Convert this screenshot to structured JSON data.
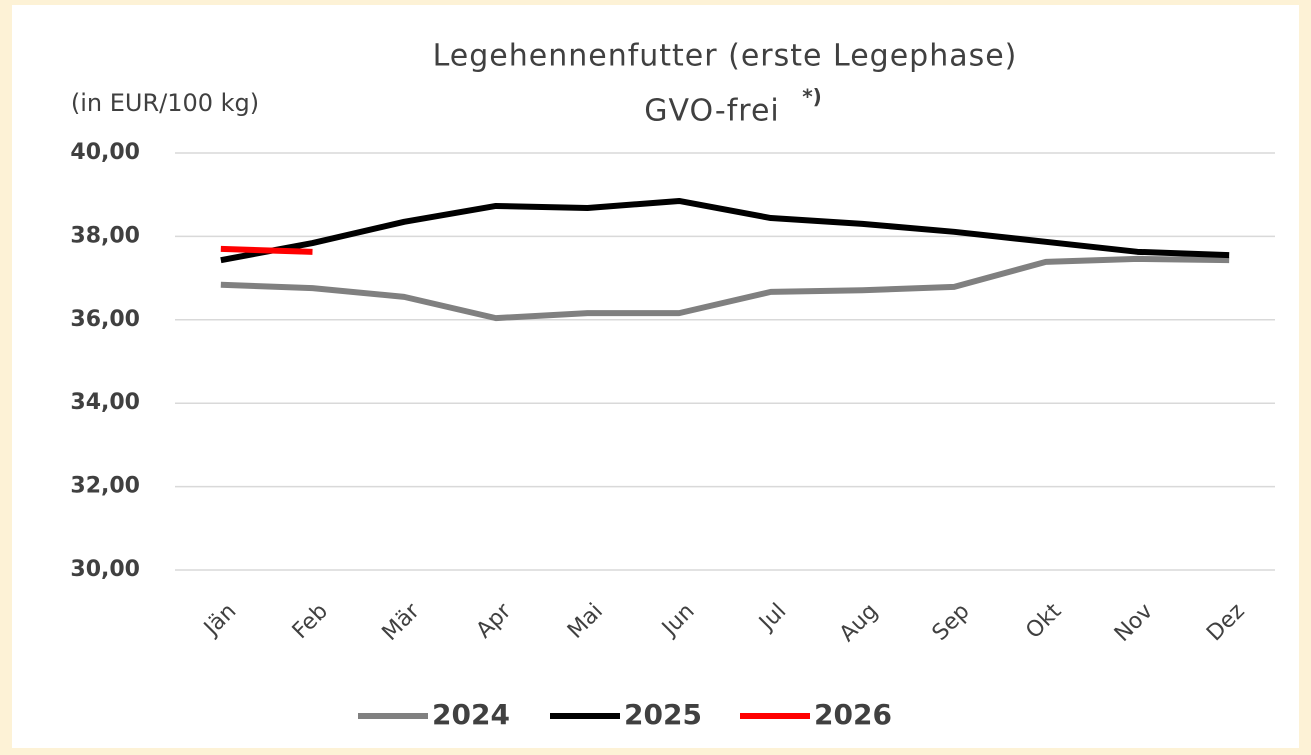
{
  "chart_data": {
    "type": "line",
    "title": "Legehennenfutter (erste Legephase)",
    "subtitle": "GVO-frei",
    "subtitle_note": "*)",
    "y_axis_label": "(in EUR/100 kg)",
    "categories": [
      "Jän",
      "Feb",
      "Mär",
      "Apr",
      "Mai",
      "Jun",
      "Jul",
      "Aug",
      "Sep",
      "Okt",
      "Nov",
      "Dez"
    ],
    "series": [
      {
        "name": "2024",
        "color": "#808080",
        "values": [
          36.84,
          36.76,
          36.55,
          36.04,
          36.16,
          36.16,
          36.67,
          36.71,
          36.79,
          37.39,
          37.46,
          37.43
        ]
      },
      {
        "name": "2025",
        "color": "#000000",
        "values": [
          37.43,
          37.84,
          38.35,
          38.73,
          38.68,
          38.85,
          38.44,
          38.3,
          38.11,
          37.87,
          37.63,
          37.55
        ]
      },
      {
        "name": "2026",
        "color": "#ff0000",
        "values": [
          37.7,
          37.63,
          null,
          null,
          null,
          null,
          null,
          null,
          null,
          null,
          null,
          null
        ]
      }
    ],
    "ylim": [
      30,
      40
    ],
    "yticks": [
      {
        "value": 30,
        "label": "30,00"
      },
      {
        "value": 32,
        "label": "32,00"
      },
      {
        "value": 34,
        "label": "34,00"
      },
      {
        "value": 36,
        "label": "36,00"
      },
      {
        "value": 38,
        "label": "38,00"
      },
      {
        "value": 40,
        "label": "40,00"
      }
    ],
    "grid": true,
    "legend": "bottom"
  }
}
